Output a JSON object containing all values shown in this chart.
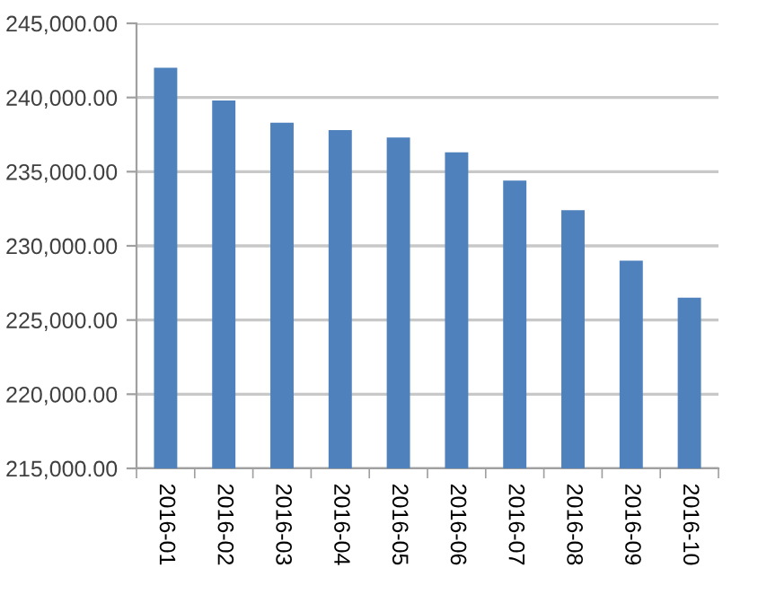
{
  "chart_data": {
    "type": "bar",
    "categories": [
      "2016-01",
      "2016-02",
      "2016-03",
      "2016-04",
      "2016-05",
      "2016-06",
      "2016-07",
      "2016-08",
      "2016-09",
      "2016-10"
    ],
    "values": [
      242000,
      239800,
      238300,
      237800,
      237300,
      236300,
      234400,
      232400,
      229000,
      226500
    ],
    "color": "#4f81bd",
    "ylim": [
      215000,
      245000
    ],
    "yticks": [
      {
        "value": 215000,
        "label": "215,000.00"
      },
      {
        "value": 220000,
        "label": "220,000.00"
      },
      {
        "value": 225000,
        "label": "225,000.00"
      },
      {
        "value": 230000,
        "label": "230,000.00"
      },
      {
        "value": 235000,
        "label": "235,000.00"
      },
      {
        "value": 240000,
        "label": "240,000.00"
      },
      {
        "value": 245000,
        "label": "245,000.00"
      }
    ],
    "grid": "y"
  }
}
